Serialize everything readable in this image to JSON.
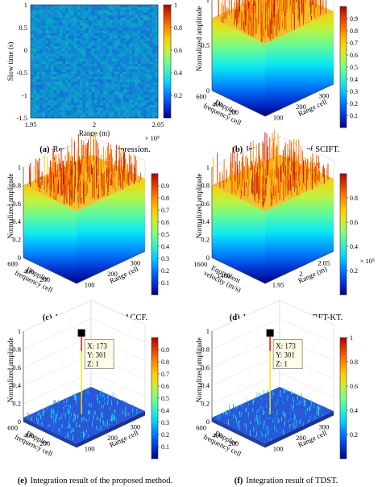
{
  "colormap": [
    "#352a87",
    "#0f5cdd",
    "#1481d6",
    "#06a4ca",
    "#2eb7a4",
    "#87bf77",
    "#d1bb59",
    "#fec832",
    "#f9fb0e"
  ],
  "panels": [
    {
      "id": "a",
      "caption_letter": "(a)",
      "caption": "Result of pulse compression.",
      "chart_data": {
        "type": "heatmap",
        "xlabel": "Range (m)",
        "ylabel": "Slow time (s)",
        "x_ticks": [
          "1.95",
          "2",
          "2.05"
        ],
        "x_exponent": "× 10⁵",
        "y_ticks": [
          "1",
          "0.5",
          "0",
          "-0.5",
          "-1",
          "-1.5"
        ],
        "xlim": [
          195000,
          205000
        ],
        "ylim": [
          -1.5,
          1
        ],
        "colorbar_ticks": [
          "1",
          "0.8",
          "0.6",
          "0.4",
          "0.2"
        ],
        "colorbar_range": [
          0,
          1
        ],
        "mean_value": 0.3
      }
    },
    {
      "id": "b",
      "caption_letter": "(b)",
      "caption": "Integration result of SCIFT.",
      "chart_data": {
        "type": "surface",
        "zlabel": "Normalized amplitude",
        "ylabel_lines": [
          "Doppler",
          "frequency cell"
        ],
        "xlabel": "Range cell",
        "z_ticks": [
          "1",
          "0.5",
          "0"
        ],
        "y_ticks": [
          "600",
          "400",
          "200"
        ],
        "x_ticks": [
          "100",
          "200",
          "300"
        ],
        "colorbar_ticks": [
          "0.9",
          "0.8",
          "0.7",
          "0.6",
          "0.5",
          "0.4",
          "0.3",
          "0.2",
          "0.1"
        ],
        "colorbar_range": [
          0,
          1
        ],
        "plateau_level": 0.5,
        "peak": null
      }
    },
    {
      "id": "c",
      "caption_letter": "(c)",
      "caption": "Integration result of ACCF.",
      "chart_data": {
        "type": "surface",
        "zlabel": "Normalized amplitude",
        "ylabel_lines": [
          "Doppler",
          "frequency cell"
        ],
        "xlabel": "Range cell",
        "z_ticks": [
          "1",
          "0.8",
          "0.6",
          "0.4",
          "0.2",
          "0"
        ],
        "y_ticks": [
          "600",
          "400",
          "200"
        ],
        "x_ticks": [
          "100",
          "200",
          "300"
        ],
        "colorbar_ticks": [
          "0.9",
          "0.8",
          "0.7",
          "0.6",
          "0.5",
          "0.4",
          "0.3",
          "0.2",
          "0.1"
        ],
        "colorbar_range": [
          0,
          1
        ],
        "plateau_level": 0.5,
        "peak": null
      }
    },
    {
      "id": "d",
      "caption_letter": "(d)",
      "caption": "Integration result of RFT-KT.",
      "chart_data": {
        "type": "surface",
        "zlabel": "Normalized amplitude",
        "ylabel_lines": [
          "Equivalent",
          "velocity (m/s)"
        ],
        "xlabel": "Range (m)",
        "z_ticks": [
          "1",
          "0.8",
          "0.6",
          "0.4",
          "0.2",
          "0"
        ],
        "y_ticks": [
          "1600",
          "1400"
        ],
        "x_ticks": [
          "1.95",
          "2",
          "2.05"
        ],
        "x_exponent": "× 10⁵",
        "colorbar_ticks": [
          "0.8",
          "0.6",
          "0.4",
          "0.2"
        ],
        "colorbar_range": [
          0,
          1
        ],
        "plateau_level": 0.5,
        "peak": null
      }
    },
    {
      "id": "e",
      "caption_letter": "(e)",
      "caption": "Integration result of the proposed method.",
      "chart_data": {
        "type": "surface",
        "zlabel": "Normalized amplitude",
        "ylabel_lines": [
          "Doppler",
          "frequency cell"
        ],
        "xlabel": "Range cell",
        "z_ticks": [
          "1",
          "0.8",
          "0.6",
          "0.4",
          "0.2",
          "0"
        ],
        "y_ticks": [
          "600",
          "400",
          "200"
        ],
        "x_ticks": [
          "100",
          "200",
          "300"
        ],
        "colorbar_ticks": [
          "0.9",
          "0.8",
          "0.7",
          "0.6",
          "0.5",
          "0.4",
          "0.3",
          "0.2",
          "0.1"
        ],
        "colorbar_range": [
          0,
          1
        ],
        "plateau_level": 0.08,
        "peak": {
          "x": 173,
          "y": 301,
          "z": 1
        },
        "datatip": [
          "X: 173",
          "Y: 301",
          "Z: 1"
        ]
      }
    },
    {
      "id": "f",
      "caption_letter": "(f)",
      "caption": "Integration result of TDST.",
      "chart_data": {
        "type": "surface",
        "zlabel": "Normalized amplitude",
        "ylabel_lines": [
          "Doppler",
          "frequency cell"
        ],
        "xlabel": "Range cell",
        "z_ticks": [
          "1",
          "0.8",
          "0.6",
          "0.4",
          "0.2",
          "0"
        ],
        "y_ticks": [
          "600",
          "400",
          "200"
        ],
        "x_ticks": [
          "100",
          "200",
          "300"
        ],
        "colorbar_ticks": [
          "1",
          "0.8",
          "0.6",
          "0.4",
          "0.2"
        ],
        "colorbar_range": [
          0,
          1
        ],
        "plateau_level": 0.08,
        "peak": {
          "x": 173,
          "y": 301,
          "z": 1
        },
        "datatip": [
          "X: 173",
          "Y: 301",
          "Z: 1"
        ]
      }
    }
  ]
}
